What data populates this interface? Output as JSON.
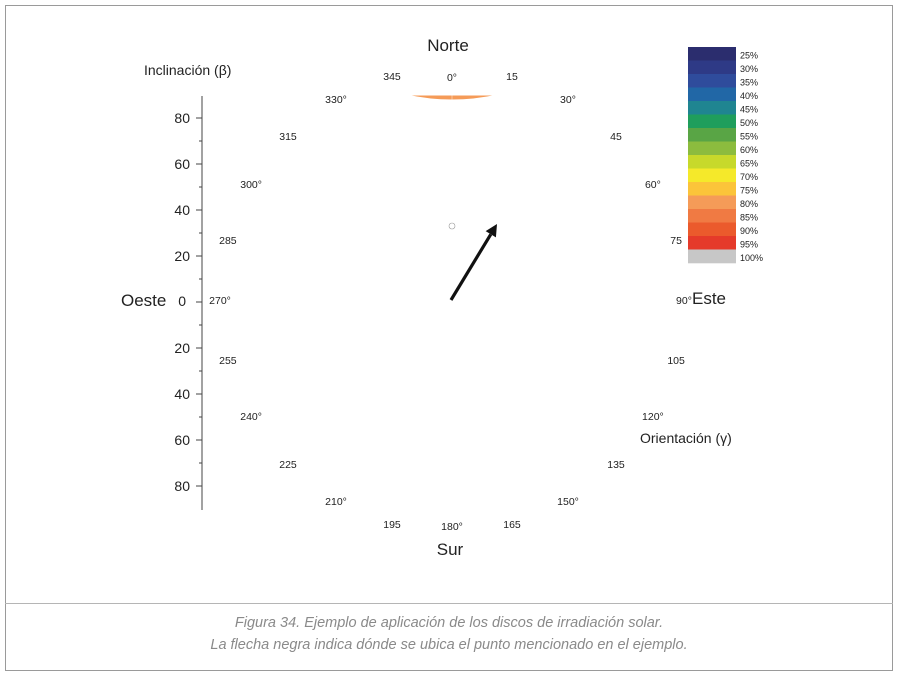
{
  "caption": {
    "line1": "Figura 34. Ejemplo de aplicación de los discos de irradiación solar.",
    "line2": "La flecha negra indica dónde se ubica el punto mencionado en el ejemplo."
  },
  "chart_data": {
    "type": "heatmap",
    "title": "",
    "compass": {
      "north": "Norte",
      "south": "Sur",
      "east": "Este",
      "west": "Oeste"
    },
    "inclination_axis": {
      "label": "Inclinación (β)",
      "ticks_upper": [
        "80",
        "60",
        "40",
        "20"
      ],
      "tick_zero": "0",
      "ticks_lower": [
        "20",
        "40",
        "60",
        "80"
      ]
    },
    "orientation_axis": {
      "label": "Orientación (γ)",
      "labels": [
        "0°",
        "15",
        "30°",
        "45",
        "60°",
        "75",
        "90°",
        "105",
        "120°",
        "135",
        "150°",
        "165",
        "180°",
        "195",
        "210°",
        "225",
        "240°",
        "255",
        "270°",
        "285",
        "300°",
        "315",
        "330°",
        "345"
      ]
    },
    "legend": {
      "entries": [
        {
          "label": "25%",
          "color": "#2b2d6e"
        },
        {
          "label": "30%",
          "color": "#2e3a86"
        },
        {
          "label": "35%",
          "color": "#2f4c9c"
        },
        {
          "label": "40%",
          "color": "#2167a6"
        },
        {
          "label": "45%",
          "color": "#1f8591"
        },
        {
          "label": "50%",
          "color": "#1f9e5c"
        },
        {
          "label": "55%",
          "color": "#59a545"
        },
        {
          "label": "60%",
          "color": "#8cbc3e"
        },
        {
          "label": "65%",
          "color": "#c7d92b"
        },
        {
          "label": "70%",
          "color": "#f5e92a"
        },
        {
          "label": "75%",
          "color": "#fbc43a"
        },
        {
          "label": "80%",
          "color": "#f59b58"
        },
        {
          "label": "85%",
          "color": "#f07a43"
        },
        {
          "label": "90%",
          "color": "#eb5a2c"
        },
        {
          "label": "95%",
          "color": "#e53a2a"
        },
        {
          "label": "100%",
          "color": "#c7c7c7"
        }
      ]
    },
    "maximum_point": {
      "orientation": 0,
      "inclination": 32
    },
    "arrow_point": {
      "orientation": 35,
      "inclination": 40
    }
  }
}
